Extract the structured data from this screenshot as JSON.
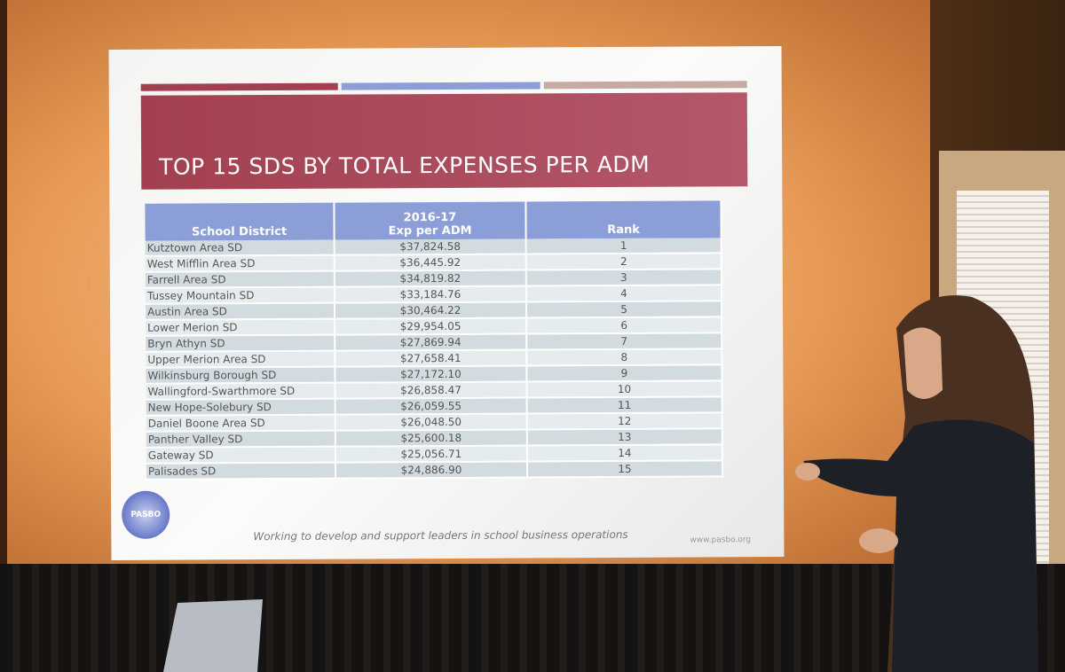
{
  "slide": {
    "title": "TOP 15 SDS BY TOTAL EXPENSES PER ADM",
    "tagline": "Working to develop and support leaders in school business operations",
    "url": "www.pasbo.org",
    "logo": "PASBO"
  },
  "table": {
    "header": [
      "School District",
      [
        "2016-17",
        "Exp per ADM"
      ],
      "Rank"
    ],
    "rows": [
      [
        "Kutztown Area SD",
        "$37,824.58",
        "1"
      ],
      [
        "West Mifflin Area SD",
        "$36,445.92",
        "2"
      ],
      [
        "Farrell Area SD",
        "$34,819.82",
        "3"
      ],
      [
        "Tussey Mountain SD",
        "$33,184.76",
        "4"
      ],
      [
        "Austin Area SD",
        "$30,464.22",
        "5"
      ],
      [
        "Lower Merion SD",
        "$29,954.05",
        "6"
      ],
      [
        "Bryn Athyn SD",
        "$27,869.94",
        "7"
      ],
      [
        "Upper Merion Area SD",
        "$27,658.41",
        "8"
      ],
      [
        "Wilkinsburg Borough SD",
        "$27,172.10",
        "9"
      ],
      [
        "Wallingford-Swarthmore SD",
        "$26,858.47",
        "10"
      ],
      [
        "New Hope-Solebury SD",
        "$26,059.55",
        "11"
      ],
      [
        "Daniel Boone Area SD",
        "$26,048.50",
        "12"
      ],
      [
        "Panther Valley SD",
        "$25,600.18",
        "13"
      ],
      [
        "Gateway SD",
        "$25,056.71",
        "14"
      ],
      [
        "Palisades SD",
        "$24,886.90",
        "15"
      ]
    ]
  }
}
